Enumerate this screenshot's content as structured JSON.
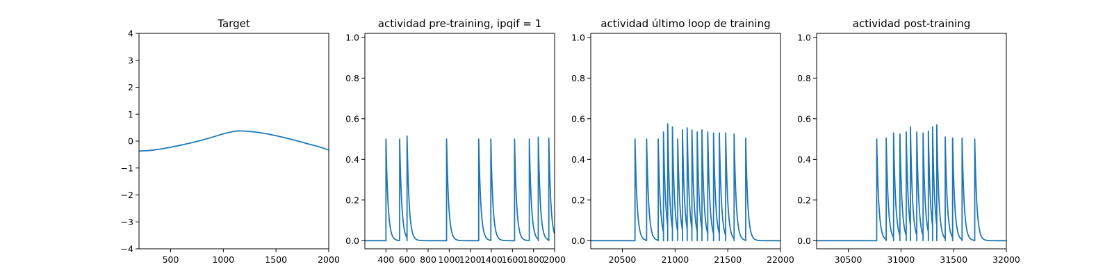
{
  "chart_data": [
    {
      "type": "line",
      "title": "Target",
      "xlim": [
        200,
        2000
      ],
      "ylim": [
        -4,
        4
      ],
      "xticks": [
        500,
        1000,
        1500,
        2000
      ],
      "yticks": [
        -4,
        -3,
        -2,
        -1,
        0,
        1,
        2,
        3,
        4
      ],
      "series": [
        {
          "x": [
            200,
            300,
            400,
            500,
            600,
            700,
            800,
            900,
            1000,
            1100,
            1150,
            1200,
            1300,
            1400,
            1500,
            1600,
            1700,
            1800,
            1900,
            2000
          ],
          "y": [
            -0.37,
            -0.35,
            -0.3,
            -0.23,
            -0.15,
            -0.06,
            0.04,
            0.15,
            0.27,
            0.36,
            0.38,
            0.37,
            0.34,
            0.28,
            0.2,
            0.11,
            0.01,
            -0.1,
            -0.2,
            -0.33
          ]
        }
      ],
      "color": "#1f77b4"
    },
    {
      "type": "line",
      "title": "actividad pre-training, ipqif = 1",
      "xlim": [
        200,
        2000
      ],
      "ylim": [
        -0.04,
        1.02
      ],
      "xticks": [
        400,
        600,
        800,
        1000,
        1200,
        1400,
        1600,
        1800,
        2000
      ],
      "yticks": [
        0.0,
        0.2,
        0.4,
        0.6,
        0.8,
        1.0
      ],
      "ytick_labels": [
        "0.0",
        "0.2",
        "0.4",
        "0.6",
        "0.8",
        "1.0"
      ],
      "spike_train": {
        "baseline": 0.0,
        "decay_time": 20,
        "spikes": [
          {
            "t": 400,
            "peak": 0.5
          },
          {
            "t": 530,
            "peak": 0.5
          },
          {
            "t": 600,
            "peak": 0.515
          },
          {
            "t": 975,
            "peak": 0.5
          },
          {
            "t": 1280,
            "peak": 0.5
          },
          {
            "t": 1395,
            "peak": 0.5
          },
          {
            "t": 1620,
            "peak": 0.5
          },
          {
            "t": 1760,
            "peak": 0.5
          },
          {
            "t": 1845,
            "peak": 0.51
          },
          {
            "t": 1945,
            "peak": 0.505
          }
        ]
      },
      "color": "#1f77b4"
    },
    {
      "type": "line",
      "title": "actividad último loop de training",
      "xlim": [
        20200,
        22000
      ],
      "ylim": [
        -0.04,
        1.02
      ],
      "xticks": [
        20500,
        21000,
        21500,
        22000
      ],
      "yticks": [
        0.0,
        0.2,
        0.4,
        0.6,
        0.8,
        1.0
      ],
      "ytick_labels": [
        "0.0",
        "0.2",
        "0.4",
        "0.6",
        "0.8",
        "1.0"
      ],
      "spike_train": {
        "baseline": 0.0,
        "decay_time": 20,
        "spikes": [
          {
            "t": 20620,
            "peak": 0.5
          },
          {
            "t": 20730,
            "peak": 0.5
          },
          {
            "t": 20840,
            "peak": 0.5
          },
          {
            "t": 20890,
            "peak": 0.535
          },
          {
            "t": 20930,
            "peak": 0.575
          },
          {
            "t": 20975,
            "peak": 0.56
          },
          {
            "t": 21025,
            "peak": 0.5
          },
          {
            "t": 21070,
            "peak": 0.545
          },
          {
            "t": 21115,
            "peak": 0.555
          },
          {
            "t": 21160,
            "peak": 0.545
          },
          {
            "t": 21210,
            "peak": 0.535
          },
          {
            "t": 21255,
            "peak": 0.545
          },
          {
            "t": 21310,
            "peak": 0.535
          },
          {
            "t": 21365,
            "peak": 0.53
          },
          {
            "t": 21420,
            "peak": 0.53
          },
          {
            "t": 21480,
            "peak": 0.53
          },
          {
            "t": 21560,
            "peak": 0.525
          },
          {
            "t": 21670,
            "peak": 0.505
          }
        ]
      },
      "color": "#1f77b4"
    },
    {
      "type": "line",
      "title": "actividad post-training",
      "xlim": [
        30200,
        32000
      ],
      "ylim": [
        -0.04,
        1.02
      ],
      "xticks": [
        30500,
        31000,
        31500,
        32000
      ],
      "yticks": [
        0.0,
        0.2,
        0.4,
        0.6,
        0.8,
        1.0
      ],
      "ytick_labels": [
        "0.0",
        "0.2",
        "0.4",
        "0.6",
        "0.8",
        "1.0"
      ],
      "spike_train": {
        "baseline": 0.0,
        "decay_time": 20,
        "spikes": [
          {
            "t": 30770,
            "peak": 0.5
          },
          {
            "t": 30860,
            "peak": 0.505
          },
          {
            "t": 30930,
            "peak": 0.53
          },
          {
            "t": 30990,
            "peak": 0.525
          },
          {
            "t": 31050,
            "peak": 0.535
          },
          {
            "t": 31090,
            "peak": 0.56
          },
          {
            "t": 31150,
            "peak": 0.535
          },
          {
            "t": 31210,
            "peak": 0.53
          },
          {
            "t": 31260,
            "peak": 0.54
          },
          {
            "t": 31300,
            "peak": 0.56
          },
          {
            "t": 31340,
            "peak": 0.57
          },
          {
            "t": 31420,
            "peak": 0.51
          },
          {
            "t": 31490,
            "peak": 0.505
          },
          {
            "t": 31580,
            "peak": 0.505
          },
          {
            "t": 31700,
            "peak": 0.5
          }
        ]
      },
      "color": "#1f77b4"
    }
  ]
}
